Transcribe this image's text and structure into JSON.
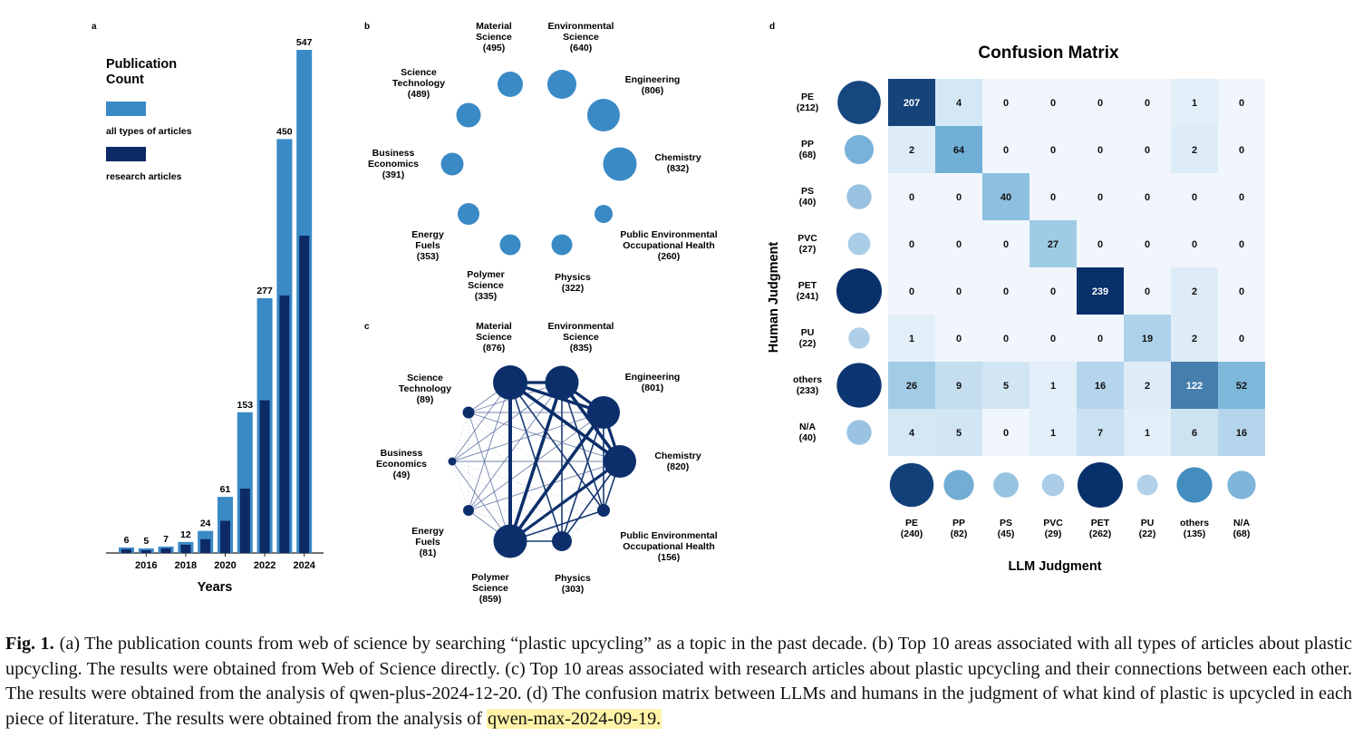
{
  "colors": {
    "all_types": "#3a8ac6",
    "research": "#0c2a66",
    "node_b": "#3a8ac6",
    "node_c": "#0c2f6b",
    "highlight": "#fff3a8"
  },
  "panel_labels": {
    "a": "a",
    "b": "b",
    "c": "c",
    "d": "d"
  },
  "panel_a": {
    "legend": {
      "title": "Publication\nCount",
      "items": [
        {
          "label": "all types of articles",
          "color": "#3a8ac6"
        },
        {
          "label": "research articles",
          "color": "#0c2a66"
        }
      ]
    },
    "xlabel": "Years",
    "xticks": [
      "2016",
      "2018",
      "2020",
      "2022",
      "2024"
    ]
  },
  "chart_data": {
    "type": "bar",
    "x": [
      2015,
      2016,
      2017,
      2018,
      2019,
      2020,
      2021,
      2022,
      2023,
      2024
    ],
    "series": [
      {
        "name": "all types of articles",
        "values": [
          6,
          5,
          7,
          12,
          24,
          61,
          153,
          277,
          450,
          547
        ]
      },
      {
        "name": "research articles",
        "values": [
          4,
          3,
          5,
          9,
          15,
          35,
          70,
          166,
          280,
          345
        ]
      }
    ],
    "data_labels": [
      "6",
      "5",
      "7",
      "12",
      "24",
      "61",
      "153",
      "277",
      "450",
      "547"
    ],
    "xlabel": "Years",
    "ylim": [
      0,
      560
    ]
  },
  "panel_b": {
    "nodes": [
      {
        "name": "Material\nScience",
        "count": "(495)"
      },
      {
        "name": "Environmental\nScience",
        "count": "(640)"
      },
      {
        "name": "Engineering",
        "count": "(806)"
      },
      {
        "name": "Chemistry",
        "count": "(832)"
      },
      {
        "name": "Public Environmental\nOccupational Health",
        "count": "(260)"
      },
      {
        "name": "Physics",
        "count": "(322)"
      },
      {
        "name": "Polymer\nScience",
        "count": "(335)"
      },
      {
        "name": "Energy\nFuels",
        "count": "(353)"
      },
      {
        "name": "Business\nEconomics",
        "count": "(391)"
      },
      {
        "name": "Science\nTechnology",
        "count": "(489)"
      }
    ]
  },
  "panel_c": {
    "nodes": [
      {
        "name": "Material\nScience",
        "count": "(876)"
      },
      {
        "name": "Environmental\nScience",
        "count": "(835)"
      },
      {
        "name": "Engineering",
        "count": "(801)"
      },
      {
        "name": "Chemistry",
        "count": "(820)"
      },
      {
        "name": "Public Environmental\nOccupational Health",
        "count": "(156)"
      },
      {
        "name": "Physics",
        "count": "(303)"
      },
      {
        "name": "Polymer\nScience",
        "count": "(859)"
      },
      {
        "name": "Energy\nFuels",
        "count": "(81)"
      },
      {
        "name": "Business\nEconomics",
        "count": "(49)"
      },
      {
        "name": "Science\nTechnology",
        "count": "(89)"
      }
    ]
  },
  "panel_d": {
    "title": "Confusion Matrix",
    "ylabel": "Human Judgment",
    "xlabel": "LLM Judgment",
    "row_labels": [
      "PE",
      "PP",
      "PS",
      "PVC",
      "PET",
      "PU",
      "others",
      "N/A"
    ],
    "row_counts": [
      "(212)",
      "(68)",
      "(40)",
      "(27)",
      "(241)",
      "(22)",
      "(233)",
      "(40)"
    ],
    "row_totals": [
      212,
      68,
      40,
      27,
      241,
      22,
      233,
      40
    ],
    "col_labels": [
      "PE",
      "PP",
      "PS",
      "PVC",
      "PET",
      "PU",
      "others",
      "N/A"
    ],
    "col_counts": [
      "(240)",
      "(82)",
      "(45)",
      "(29)",
      "(262)",
      "(22)",
      "(135)",
      "(68)"
    ],
    "col_totals": [
      240,
      82,
      45,
      29,
      262,
      22,
      135,
      68
    ],
    "matrix": [
      [
        207,
        4,
        0,
        0,
        0,
        0,
        1,
        0
      ],
      [
        2,
        64,
        0,
        0,
        0,
        0,
        2,
        0
      ],
      [
        0,
        0,
        40,
        0,
        0,
        0,
        0,
        0
      ],
      [
        0,
        0,
        0,
        27,
        0,
        0,
        0,
        0
      ],
      [
        0,
        0,
        0,
        0,
        239,
        0,
        2,
        0
      ],
      [
        1,
        0,
        0,
        0,
        0,
        19,
        2,
        0
      ],
      [
        26,
        9,
        5,
        1,
        16,
        2,
        122,
        52
      ],
      [
        4,
        5,
        0,
        1,
        7,
        1,
        6,
        16
      ]
    ]
  },
  "caption": {
    "label": "Fig. 1.",
    "text": "(a) The publication counts from web of science by searching “plastic upcycling” as a topic in the past decade. (b) Top 10 areas associated with all types of articles about plastic upcycling. The results were obtained from Web of Science directly. (c) Top 10 areas associated with research articles about plastic upcycling and their connections between each other. The results were obtained from the analysis of qwen-plus-2024-12-20. (d) The confusion matrix between LLMs and humans in the judgment of what kind of plastic is upcycled in each piece of literature. The results were obtained from the analysis of ",
    "highlight": "qwen-max-2024-09-19."
  }
}
